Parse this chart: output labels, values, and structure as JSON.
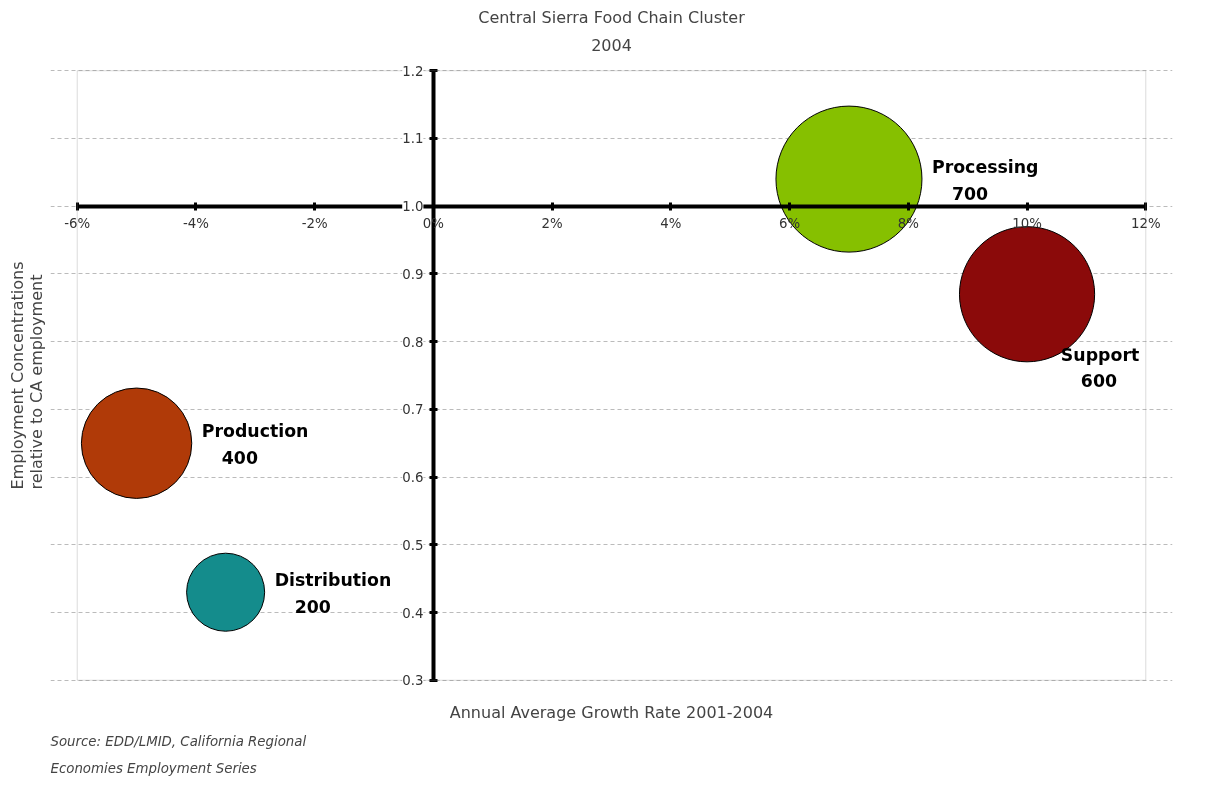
{
  "chart_data": {
    "type": "bubble",
    "title": "Central Sierra Food Chain Cluster",
    "subtitle": "2004",
    "xlabel": "Annual Average Growth Rate 2001-2004",
    "ylabel": "Employment Concentrations\nrelative to CA employment",
    "annotations": [
      "Source: EDD/LMID, California Regional\nEconomies Employment Series"
    ],
    "series": [
      {
        "name": "Processing",
        "color": "#86c000",
        "x": [
          7
        ],
        "values": [
          1.04
        ],
        "sizes": [
          700
        ],
        "value_labels": [
          "700"
        ]
      },
      {
        "name": "Support",
        "color": "#8b0a0a",
        "x": [
          10
        ],
        "values": [
          0.87
        ],
        "sizes": [
          600
        ],
        "value_labels": [
          "600"
        ]
      },
      {
        "name": "Production",
        "color": "#b03a08",
        "x": [
          -5
        ],
        "values": [
          0.65
        ],
        "sizes": [
          400
        ],
        "value_labels": [
          "400"
        ]
      },
      {
        "name": "Distribution",
        "color": "#148c8c",
        "x": [
          -3.5
        ],
        "values": [
          0.43
        ],
        "sizes": [
          200
        ],
        "value_labels": [
          "200"
        ]
      }
    ],
    "xlim": [
      -6,
      12
    ],
    "ylim": [
      0.3,
      1.2
    ],
    "xticks": [
      {
        "value": -6,
        "label": "-6%"
      },
      {
        "value": -4,
        "label": "-4%"
      },
      {
        "value": -2,
        "label": "-2%"
      },
      {
        "value": 0,
        "label": "0%"
      },
      {
        "value": 2,
        "label": "2%"
      },
      {
        "value": 4,
        "label": "4%"
      },
      {
        "value": 6,
        "label": "6%"
      },
      {
        "value": 8,
        "label": "8%"
      },
      {
        "value": 10,
        "label": "10%"
      },
      {
        "value": 12,
        "label": "12%"
      }
    ],
    "yticks": [
      0.3,
      0.4,
      0.5,
      0.6,
      0.7,
      0.8,
      0.9,
      {
        "value": 1,
        "label": "1.0"
      },
      1.1,
      1.2
    ],
    "grid": "y",
    "legend": false
  }
}
